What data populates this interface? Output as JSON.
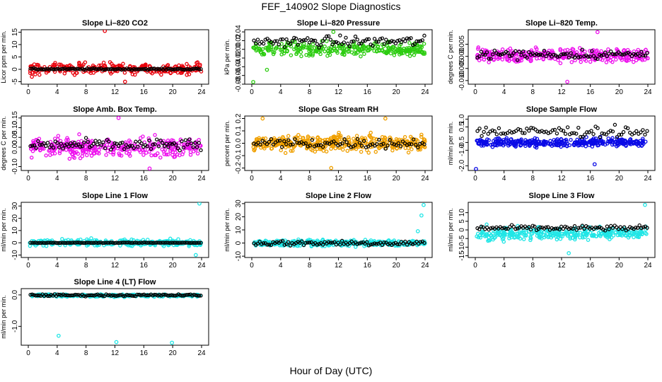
{
  "figure": {
    "title": "FEF_140902  Slope Diagnostics",
    "xlabel": "Hour of Day (UTC)"
  },
  "chart_data": [
    {
      "type": "scatter",
      "title": "Slope Li–820 CO2",
      "ylabel": "Licor ppm per min.",
      "xlim": [
        0,
        24
      ],
      "ylim": [
        -6,
        16
      ],
      "x_ticks": [
        "0",
        "4",
        "8",
        "12",
        "16",
        "20",
        "24"
      ],
      "y_ticks": [
        {
          "v": -5,
          "t": "-5"
        },
        {
          "v": 0,
          "t": "0"
        },
        {
          "v": 5,
          "t": "5"
        },
        {
          "v": 10,
          "t": "10"
        },
        {
          "v": 15,
          "t": "15"
        }
      ],
      "color": "#e8000b",
      "series_main": {
        "x_range": [
          0.2,
          24
        ],
        "base": 0.3,
        "spread": 2.2,
        "n": 260
      },
      "series_black": {
        "base": 0.1,
        "spread": 0.3,
        "n": 100
      },
      "outliers": [
        {
          "x": 10.6,
          "y": 15.5
        },
        {
          "x": 0.5,
          "y": -3.0
        },
        {
          "x": 13.4,
          "y": -5.0
        }
      ]
    },
    {
      "type": "scatter",
      "title": "Slope Li–820 Pressure",
      "ylabel": "kPa per min.",
      "xlim": [
        0,
        24
      ],
      "ylim": [
        -0.08,
        0.045
      ],
      "x_ticks": [
        "0",
        "4",
        "8",
        "12",
        "16",
        "20",
        "24"
      ],
      "y_ticks": [
        {
          "v": -0.08,
          "t": "-0.08"
        },
        {
          "v": -0.06,
          "t": "-0.06"
        },
        {
          "v": -0.04,
          "t": "-0.04"
        },
        {
          "v": -0.02,
          "t": "-0.02"
        },
        {
          "v": 0.0,
          "t": "0.00"
        },
        {
          "v": 0.02,
          "t": "0.02"
        },
        {
          "v": 0.04,
          "t": "0.04"
        }
      ],
      "color": "#2ccc10",
      "series_main": {
        "x_range": [
          0.2,
          24
        ],
        "base": 0.0,
        "spread": 0.015,
        "n": 320
      },
      "series_black": {
        "base": 0.018,
        "spread": 0.012,
        "n": 90
      },
      "outliers": [
        {
          "x": 0.2,
          "y": -0.075
        },
        {
          "x": 2.1,
          "y": -0.047
        },
        {
          "x": 11.3,
          "y": 0.04
        }
      ]
    },
    {
      "type": "scatter",
      "title": "Slope Li–820 Temp.",
      "ylabel": "degrees C per min.",
      "xlim": [
        0,
        24
      ],
      "ylim": [
        -0.0115,
        0.011
      ],
      "x_ticks": [
        "0",
        "4",
        "8",
        "12",
        "16",
        "20",
        "24"
      ],
      "y_ticks": [
        {
          "v": -0.01,
          "t": "-0.010"
        },
        {
          "v": -0.005,
          "t": "-0.005"
        },
        {
          "v": 0.0,
          "t": "0.000"
        },
        {
          "v": 0.005,
          "t": "0.005"
        }
      ],
      "color": "#ee11ee",
      "series_main": {
        "x_range": [
          0.2,
          24
        ],
        "base": 0.0005,
        "spread": 0.0028,
        "n": 330
      },
      "series_black": {
        "base": 0.0008,
        "spread": 0.0018,
        "n": 90
      },
      "outliers": [
        {
          "x": 17.0,
          "y": 0.01
        },
        {
          "x": 12.8,
          "y": -0.0105
        }
      ]
    },
    {
      "type": "scatter",
      "title": "Slope Amb. Box Temp.",
      "ylabel": "degrees C per min.",
      "xlim": [
        0,
        24
      ],
      "ylim": [
        -0.12,
        0.16
      ],
      "x_ticks": [
        "0",
        "4",
        "8",
        "12",
        "16",
        "20",
        "24"
      ],
      "y_ticks": [
        {
          "v": -0.1,
          "t": "-0.10"
        },
        {
          "v": 0.0,
          "t": "0.00"
        },
        {
          "v": 0.05,
          "t": "0.05"
        },
        {
          "v": 0.1,
          "t": "0.10"
        },
        {
          "v": 0.15,
          "t": "0.15"
        }
      ],
      "color": "#ee11ee",
      "series_main": {
        "x_range": [
          0.2,
          24
        ],
        "base": 0.0,
        "spread": 0.045,
        "n": 330
      },
      "series_black": {
        "base": 0.01,
        "spread": 0.03,
        "n": 90
      },
      "outliers": [
        {
          "x": 12.5,
          "y": 0.15
        },
        {
          "x": 16.8,
          "y": -0.11
        }
      ]
    },
    {
      "type": "scatter",
      "title": "Slope Gas Stream RH",
      "ylabel": "percent per min.",
      "xlim": [
        0,
        24
      ],
      "ylim": [
        -0.22,
        0.22
      ],
      "x_ticks": [
        "0",
        "4",
        "8",
        "12",
        "16",
        "20",
        "24"
      ],
      "y_ticks": [
        {
          "v": -0.2,
          "t": "-0.2"
        },
        {
          "v": -0.1,
          "t": "-0.1"
        },
        {
          "v": 0.0,
          "t": "0.0"
        },
        {
          "v": 0.1,
          "t": "0.1"
        },
        {
          "v": 0.2,
          "t": "0.2"
        }
      ],
      "color": "#f0a000",
      "series_main": {
        "x_range": [
          0.2,
          24
        ],
        "base": 0.0,
        "spread": 0.06,
        "n": 420
      },
      "series_black": {
        "base": 0.0,
        "spread": 0.04,
        "n": 80
      },
      "outliers": [
        {
          "x": 1.5,
          "y": 0.2
        },
        {
          "x": 11.0,
          "y": -0.2
        },
        {
          "x": 18.5,
          "y": 0.2
        }
      ]
    },
    {
      "type": "scatter",
      "title": "Slope Sample Flow",
      "ylabel": "ml/min per min.",
      "xlim": [
        0,
        24
      ],
      "ylim": [
        -2.3,
        1.2
      ],
      "x_ticks": [
        "0",
        "4",
        "8",
        "12",
        "16",
        "20",
        "24"
      ],
      "y_ticks": [
        {
          "v": -2.0,
          "t": "-2.0"
        },
        {
          "v": -1.0,
          "t": "-1.0"
        },
        {
          "v": -0.5,
          "t": "-0.5"
        },
        {
          "v": 0.5,
          "t": "0.5"
        },
        {
          "v": 1.0,
          "t": "1.0"
        }
      ],
      "color": "#0a0ae6",
      "series_main": {
        "x_range": [
          0.2,
          24
        ],
        "base": -0.5,
        "spread": 0.25,
        "n": 360
      },
      "series_black": {
        "base": 0.2,
        "spread": 0.35,
        "n": 80
      },
      "outliers": [
        {
          "x": 0.1,
          "y": -2.2
        },
        {
          "x": 16.6,
          "y": -1.9
        }
      ]
    },
    {
      "type": "scatter",
      "title": "Slope Line 1 Flow",
      "ylabel": "ml/min per min.",
      "xlim": [
        0,
        24
      ],
      "ylim": [
        -12,
        33
      ],
      "x_ticks": [
        "0",
        "4",
        "8",
        "12",
        "16",
        "20",
        "24"
      ],
      "y_ticks": [
        {
          "v": -10,
          "t": "-10"
        },
        {
          "v": 0,
          "t": "0"
        },
        {
          "v": 10,
          "t": "10"
        },
        {
          "v": 20,
          "t": "20"
        },
        {
          "v": 30,
          "t": "30"
        }
      ],
      "color": "#20e6e6",
      "series_main": {
        "x_range": [
          0.2,
          24
        ],
        "base": 0.0,
        "spread": 2.5,
        "n": 300
      },
      "series_black": {
        "base": 0.0,
        "spread": 0.2,
        "n": 100
      },
      "outliers": [
        {
          "x": 23.7,
          "y": 32.0
        },
        {
          "x": 23.2,
          "y": -10.0
        }
      ]
    },
    {
      "type": "scatter",
      "title": "Slope Line 2 Flow",
      "ylabel": "ml/min per min.",
      "xlim": [
        0,
        24
      ],
      "ylim": [
        -11,
        31
      ],
      "x_ticks": [
        "0",
        "4",
        "8",
        "12",
        "16",
        "20",
        "24"
      ],
      "y_ticks": [
        {
          "v": -10,
          "t": "-10"
        },
        {
          "v": 0,
          "t": "0"
        },
        {
          "v": 10,
          "t": "10"
        },
        {
          "v": 20,
          "t": "20"
        },
        {
          "v": 30,
          "t": "30"
        }
      ],
      "color": "#20e6e6",
      "series_main": {
        "x_range": [
          0.2,
          24
        ],
        "base": 0.0,
        "spread": 2.2,
        "n": 340
      },
      "series_black": {
        "base": 0.0,
        "spread": 2.0,
        "n": 90
      },
      "outliers": [
        {
          "x": 23.8,
          "y": 29.0
        },
        {
          "x": 23.5,
          "y": 21.0
        },
        {
          "x": 23.0,
          "y": 9.0
        }
      ]
    },
    {
      "type": "scatter",
      "title": "Slope Line 3 Flow",
      "ylabel": "ml/min per min.",
      "xlim": [
        0,
        24
      ],
      "ylim": [
        -16,
        16
      ],
      "x_ticks": [
        "0",
        "4",
        "8",
        "12",
        "16",
        "20",
        "24"
      ],
      "y_ticks": [
        {
          "v": -15,
          "t": "-15"
        },
        {
          "v": -10,
          "t": "-10"
        },
        {
          "v": -5,
          "t": "-5"
        },
        {
          "v": 0,
          "t": "0"
        },
        {
          "v": 5,
          "t": "5"
        },
        {
          "v": 10,
          "t": "10"
        }
      ],
      "color": "#20e6e6",
      "series_main": {
        "x_range": [
          0.2,
          24
        ],
        "base": -2.0,
        "spread": 3.5,
        "n": 330
      },
      "series_black": {
        "base": 1.0,
        "spread": 1.5,
        "n": 90
      },
      "outliers": [
        {
          "x": 23.6,
          "y": 14.5
        },
        {
          "x": 13.0,
          "y": -13.5
        }
      ]
    },
    {
      "type": "scatter",
      "title": "Slope Line 4 (LT) Flow",
      "ylabel": "ml/min per min.",
      "xlim": [
        0,
        24
      ],
      "ylim": [
        -1.6,
        0.2
      ],
      "x_ticks": [
        "0",
        "4",
        "8",
        "12",
        "16",
        "20",
        "24"
      ],
      "y_ticks": [
        {
          "v": -1.0,
          "t": "-1.0"
        },
        {
          "v": 0.0,
          "t": "0.0"
        }
      ],
      "color": "#20e6e6",
      "series_main": {
        "x_range": [
          0.2,
          24
        ],
        "base": -0.02,
        "spread": 0.04,
        "n": 250
      },
      "series_black": {
        "base": -0.01,
        "spread": 0.03,
        "n": 100
      },
      "outliers": [
        {
          "x": 4.2,
          "y": -1.3
        },
        {
          "x": 12.2,
          "y": -1.5
        },
        {
          "x": 19.9,
          "y": -1.52
        }
      ]
    }
  ]
}
